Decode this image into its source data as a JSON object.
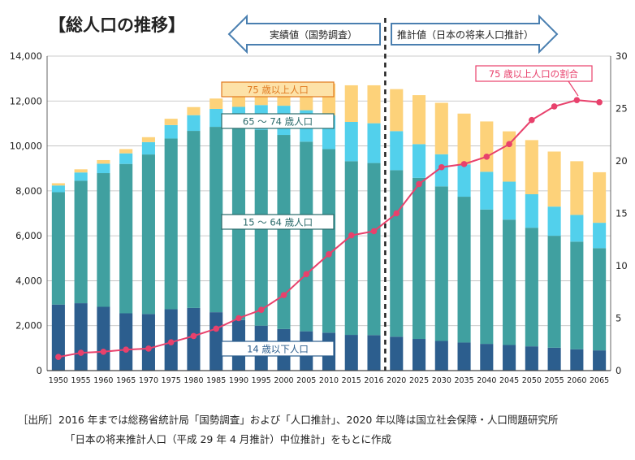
{
  "chart_data": {
    "type": "bar",
    "title": "【総人口の推移】",
    "period_labels": {
      "actual": "実績値（国勢調査）",
      "projected": "推計値（日本の将来人口推計）"
    },
    "categories": [
      "1950",
      "1955",
      "1960",
      "1965",
      "1970",
      "1975",
      "1980",
      "1985",
      "1990",
      "1995",
      "2000",
      "2005",
      "2010",
      "2015",
      "2016",
      "2020",
      "2025",
      "2030",
      "2035",
      "2040",
      "2045",
      "2050",
      "2055",
      "2060",
      "2065"
    ],
    "stacked": true,
    "series": [
      {
        "name": "14 歳以下人口",
        "color": "#2c5e8e",
        "values": [
          2940,
          3000,
          2840,
          2550,
          2520,
          2730,
          2790,
          2600,
          2250,
          2000,
          1850,
          1750,
          1690,
          1590,
          1580,
          1510,
          1410,
          1320,
          1250,
          1190,
          1140,
          1080,
          1020,
          950,
          900
        ]
      },
      {
        "name": "15 〜 64 歳人口",
        "color": "#40a0a0",
        "values": [
          5000,
          5450,
          5950,
          6650,
          7100,
          7600,
          7880,
          8250,
          8590,
          8720,
          8640,
          8440,
          8170,
          7730,
          7660,
          7410,
          7170,
          6880,
          6490,
          5980,
          5580,
          5280,
          4980,
          4790,
          4550
        ]
      },
      {
        "name": "65 〜 74 歳人口",
        "color": "#52d0ec",
        "values": [
          300,
          370,
          420,
          470,
          550,
          600,
          700,
          800,
          900,
          1100,
          1300,
          1400,
          1500,
          1750,
          1770,
          1740,
          1500,
          1430,
          1440,
          1680,
          1690,
          1490,
          1300,
          1190,
          1130
        ]
      },
      {
        "name": "75 歳以上人口",
        "color": "#fdd27a",
        "values": [
          100,
          140,
          160,
          190,
          220,
          280,
          360,
          460,
          600,
          720,
          900,
          1160,
          1420,
          1630,
          1690,
          1870,
          2180,
          2290,
          2260,
          2240,
          2240,
          2410,
          2450,
          2390,
          2250
        ]
      }
    ],
    "line": {
      "name": "75 歳以上人口の割合",
      "color": "#e8416c",
      "axis": "right",
      "values": [
        1.3,
        1.7,
        1.8,
        2.0,
        2.1,
        2.7,
        3.3,
        4.0,
        5.0,
        5.8,
        7.2,
        9.2,
        11.1,
        12.9,
        13.3,
        15.0,
        17.8,
        19.4,
        19.7,
        20.4,
        21.6,
        23.9,
        25.2,
        25.8,
        25.6
      ]
    },
    "y_left": {
      "min": 0,
      "max": 14000,
      "ticks": [
        "0",
        "2,000",
        "4,000",
        "6,000",
        "8,000",
        "10,000",
        "12,000",
        "14,000"
      ]
    },
    "y_right": {
      "min": 0,
      "max": 30,
      "ticks": [
        "0",
        "5",
        "10",
        "15",
        "20",
        "25",
        "30"
      ]
    },
    "grid": true
  },
  "source_note": {
    "line1": "［出所］2016 年までは総務省統計局「国勢調査」および「人口推計」、2020 年以降は国立社会保障・人口問題研究所",
    "line2": "「日本の将来推計人口（平成 29 年 4 月推計）中位推計」をもとに作成"
  }
}
